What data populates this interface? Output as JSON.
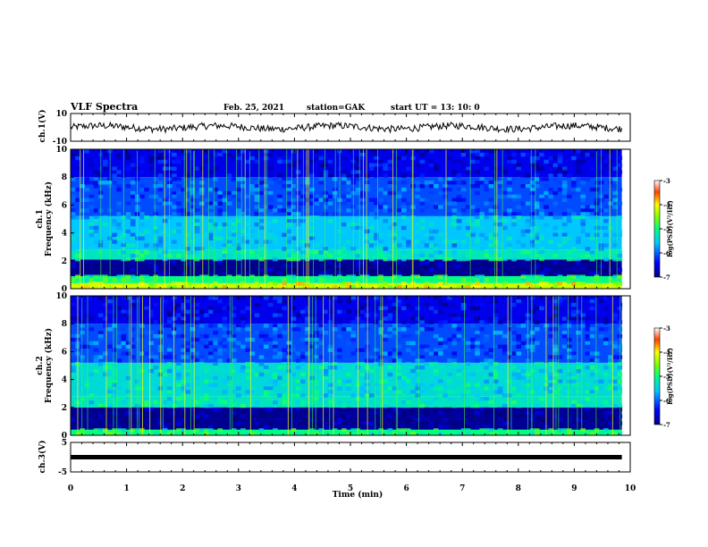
{
  "chart_data": {
    "type": "heatmap",
    "header": {
      "title": "VLF Spectra",
      "date": "Feb. 25, 2021",
      "station": "station=GAK",
      "start": "start  UT  =   13: 10: 0"
    },
    "xaxis": {
      "label": "Time  (min)",
      "range": [
        0,
        10
      ],
      "ticks": [
        "0",
        "1",
        "2",
        "3",
        "4",
        "5",
        "6",
        "7",
        "8",
        "9",
        "10"
      ]
    },
    "data_end_min": 9.85,
    "panels": [
      {
        "id": "ch1v",
        "type": "line",
        "ylabel": "ch.1(V)",
        "ylim": [
          -10,
          10
        ],
        "yticks": [
          "10",
          "-10"
        ],
        "baseline_v": 0,
        "note": "noise trace centred near 0 V"
      },
      {
        "id": "ch1",
        "type": "spectrogram",
        "ylabel": "ch.1\nFrequency  (kHz)",
        "ylim": [
          0,
          10
        ],
        "yticks": [
          "0",
          "2",
          "4",
          "6",
          "8",
          "10"
        ],
        "colorbar": {
          "label": "log(PSD)(V²/Hz)",
          "range": [
            -7,
            -3
          ],
          "ticks": [
            "-3",
            "-4",
            "-5",
            "-6",
            "-7"
          ]
        },
        "bands": [
          {
            "f0": 0.0,
            "f1": 0.4,
            "level": -4.2
          },
          {
            "f0": 0.4,
            "f1": 0.9,
            "level": -5.0
          },
          {
            "f0": 0.9,
            "f1": 2.1,
            "level": -6.9
          },
          {
            "f0": 2.1,
            "f1": 2.8,
            "level": -5.3
          },
          {
            "f0": 2.8,
            "f1": 5.2,
            "level": -5.6
          },
          {
            "f0": 5.2,
            "f1": 8.0,
            "level": -6.1
          },
          {
            "f0": 8.0,
            "f1": 10.0,
            "level": -6.5
          }
        ]
      },
      {
        "id": "ch2",
        "type": "spectrogram",
        "ylabel": "ch.2\nFrequency  (kHz)",
        "ylim": [
          0,
          10
        ],
        "yticks": [
          "0",
          "2",
          "4",
          "6",
          "8",
          "10"
        ],
        "colorbar": {
          "label": "log(PSD)(V²/Hz)",
          "range": [
            -7,
            -3
          ],
          "ticks": [
            "-3",
            "-4",
            "-5",
            "-6",
            "-7"
          ]
        },
        "bands": [
          {
            "f0": 0.0,
            "f1": 0.4,
            "level": -5.0
          },
          {
            "f0": 0.4,
            "f1": 2.0,
            "level": -6.9
          },
          {
            "f0": 2.0,
            "f1": 2.8,
            "level": -5.3
          },
          {
            "f0": 2.8,
            "f1": 5.2,
            "level": -5.4
          },
          {
            "f0": 5.2,
            "f1": 8.0,
            "level": -6.1
          },
          {
            "f0": 8.0,
            "f1": 10.0,
            "level": -6.5
          }
        ]
      },
      {
        "id": "ch3v",
        "type": "line",
        "ylabel": "ch.3(V)",
        "ylim": [
          -5,
          5
        ],
        "yticks": [
          "5",
          "-5"
        ],
        "baseline_v": 0,
        "note": "thick flat trace at about 0 V"
      }
    ],
    "grid": false
  }
}
